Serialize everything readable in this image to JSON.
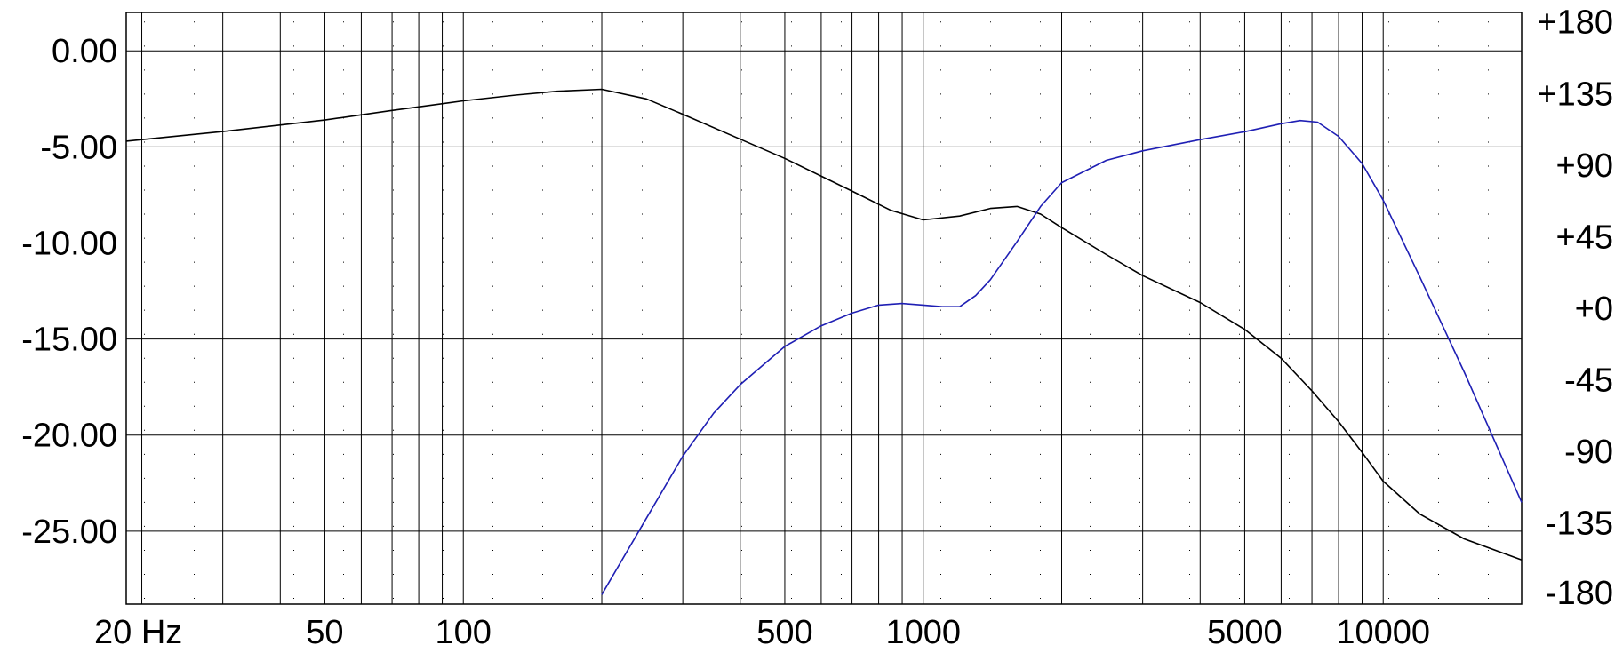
{
  "chart_data": {
    "type": "line",
    "title": "",
    "xlabel": "",
    "ylabel": "",
    "x_scale": "log",
    "xlim": [
      18.5,
      20000
    ],
    "ylim": [
      -28.8,
      2.0
    ],
    "y2lim": [
      -186,
      186
    ],
    "grid": true,
    "x_tick_labels": [
      {
        "value": 20,
        "label": "20 Hz"
      },
      {
        "value": 50,
        "label": "50"
      },
      {
        "value": 100,
        "label": "100"
      },
      {
        "value": 500,
        "label": "500"
      },
      {
        "value": 1000,
        "label": "1000"
      },
      {
        "value": 5000,
        "label": "5000"
      },
      {
        "value": 10000,
        "label": "10000"
      }
    ],
    "y_tick_labels": [
      {
        "value": 0,
        "label": "0.00"
      },
      {
        "value": -5,
        "label": "-5.00"
      },
      {
        "value": -10,
        "label": "-10.00"
      },
      {
        "value": -15,
        "label": "-15.00"
      },
      {
        "value": -20,
        "label": "-20.00"
      },
      {
        "value": -25,
        "label": "-25.00"
      }
    ],
    "y2_tick_labels": [
      {
        "value": 180,
        "label": "+180"
      },
      {
        "value": 135,
        "label": "+135"
      },
      {
        "value": 90,
        "label": "+90"
      },
      {
        "value": 45,
        "label": "+45"
      },
      {
        "value": 0,
        "label": "+0"
      },
      {
        "value": -45,
        "label": "-45"
      },
      {
        "value": -90,
        "label": "-90"
      },
      {
        "value": -135,
        "label": "-135"
      },
      {
        "value": -180,
        "label": "-180"
      }
    ],
    "series": [
      {
        "axis": "left",
        "color": "#000000",
        "x": [
          18.5,
          30,
          50,
          70,
          100,
          130,
          160,
          200,
          250,
          300,
          400,
          500,
          700,
          850,
          1000,
          1200,
          1400,
          1600,
          1800,
          2000,
          2500,
          3000,
          4000,
          5000,
          6000,
          7000,
          8000,
          9000,
          10000,
          12000,
          15000,
          20000
        ],
        "y": [
          -4.7,
          -4.2,
          -3.6,
          -3.1,
          -2.6,
          -2.3,
          -2.1,
          -2.0,
          -2.5,
          -3.3,
          -4.6,
          -5.6,
          -7.3,
          -8.3,
          -8.8,
          -8.6,
          -8.2,
          -8.1,
          -8.5,
          -9.2,
          -10.6,
          -11.7,
          -13.1,
          -14.5,
          -16.0,
          -17.7,
          -19.3,
          -20.9,
          -22.4,
          -24.1,
          -25.4,
          -26.5
        ]
      },
      {
        "axis": "right",
        "color": "#1f1fb4",
        "x": [
          200,
          250,
          300,
          350,
          400,
          500,
          600,
          700,
          800,
          900,
          1000,
          1100,
          1200,
          1300,
          1400,
          1600,
          1800,
          2000,
          2500,
          3000,
          4000,
          5000,
          6000,
          6600,
          7200,
          8000,
          9000,
          10000,
          12000,
          15000,
          20000
        ],
        "y": [
          -180,
          -132,
          -93,
          -66,
          -48,
          -24,
          -11,
          -3,
          2,
          3,
          2,
          1,
          1,
          8,
          18,
          42,
          64,
          79,
          93,
          99,
          106,
          111,
          116,
          118,
          117,
          108,
          91,
          68,
          20,
          -40,
          -122
        ]
      }
    ]
  }
}
